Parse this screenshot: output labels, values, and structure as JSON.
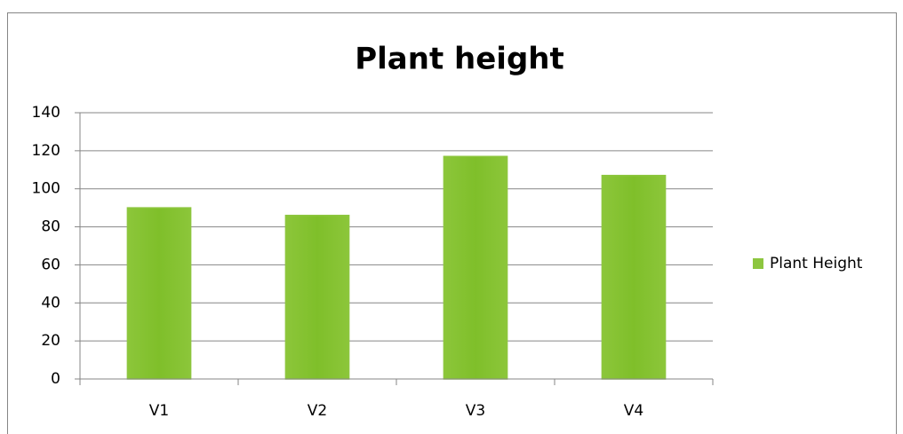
{
  "chart_data": {
    "type": "bar",
    "title": "Plant height",
    "categories": [
      "V1",
      "V2",
      "V3",
      "V4"
    ],
    "series": [
      {
        "name": "Plant Height",
        "color": "#8dc63f",
        "values": [
          90,
          86,
          117,
          107
        ]
      }
    ],
    "ylim": [
      0,
      140
    ],
    "yticks": [
      0,
      20,
      40,
      60,
      80,
      100,
      120,
      140
    ],
    "grid": true,
    "legend": "right"
  }
}
